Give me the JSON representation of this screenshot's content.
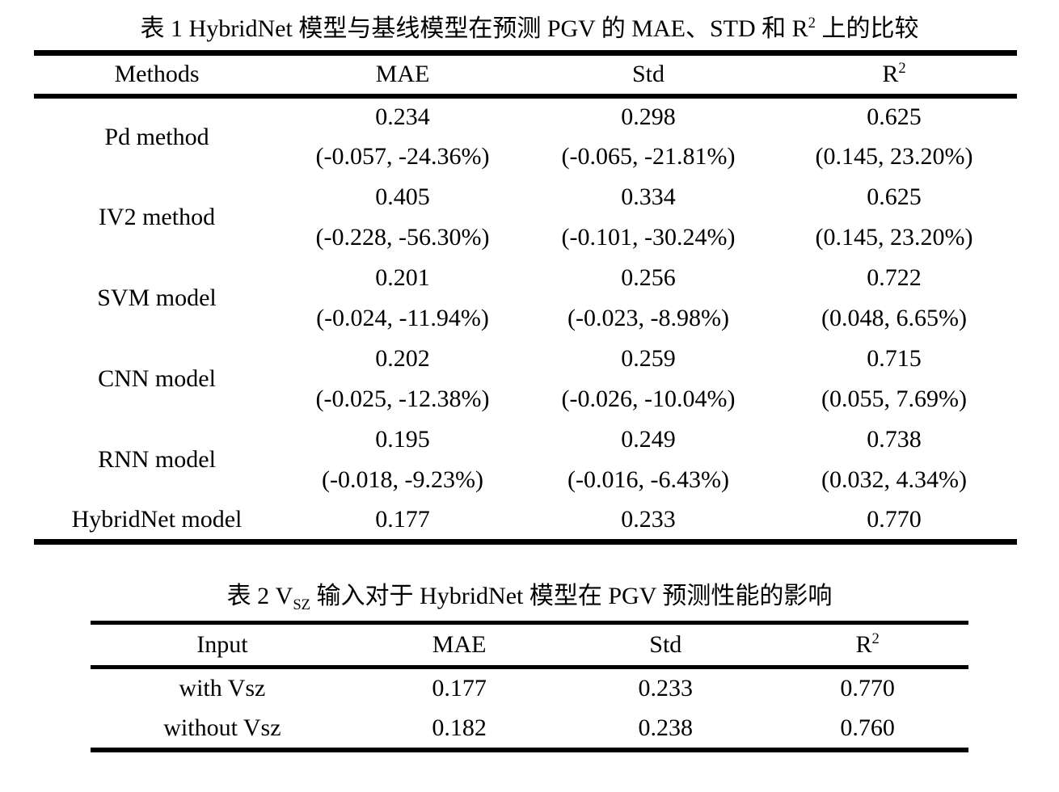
{
  "colors": {
    "text": "#000000",
    "background": "#ffffff",
    "rule": "#000000"
  },
  "table1": {
    "caption": {
      "prefix": "表 1 HybridNet 模型与基线模型在预测 PGV 的 MAE、STD 和 R",
      "sup": "2",
      "suffix": " 上的比较"
    },
    "headers": {
      "methods": "Methods",
      "mae": "MAE",
      "std": "Std",
      "r2_base": "R",
      "r2_sup": "2"
    },
    "rows": [
      {
        "method": "Pd method",
        "mae": "0.234",
        "mae_delta": "(-0.057, -24.36%)",
        "std": "0.298",
        "std_delta": "(-0.065, -21.81%)",
        "r2": "0.625",
        "r2_delta": "(0.145, 23.20%)"
      },
      {
        "method": "IV2 method",
        "mae": "0.405",
        "mae_delta": "(-0.228, -56.30%)",
        "std": "0.334",
        "std_delta": "(-0.101, -30.24%)",
        "r2": "0.625",
        "r2_delta": "(0.145, 23.20%)"
      },
      {
        "method": "SVM model",
        "mae": "0.201",
        "mae_delta": "(-0.024, -11.94%)",
        "std": "0.256",
        "std_delta": "(-0.023, -8.98%)",
        "r2": "0.722",
        "r2_delta": "(0.048, 6.65%)"
      },
      {
        "method": "CNN model",
        "mae": "0.202",
        "mae_delta": "(-0.025, -12.38%)",
        "std": "0.259",
        "std_delta": "(-0.026, -10.04%)",
        "r2": "0.715",
        "r2_delta": "(0.055, 7.69%)"
      },
      {
        "method": "RNN model",
        "mae": "0.195",
        "mae_delta": "(-0.018, -9.23%)",
        "std": "0.249",
        "std_delta": "(-0.016, -6.43%)",
        "r2": "0.738",
        "r2_delta": "(0.032, 4.34%)"
      },
      {
        "method": "HybridNet model",
        "mae": "0.177",
        "std": "0.233",
        "r2": "0.770"
      }
    ]
  },
  "table2": {
    "caption": {
      "prefix": "表 2 V",
      "sub": "SZ",
      "suffix": " 输入对于 HybridNet 模型在 PGV 预测性能的影响"
    },
    "headers": {
      "input": "Input",
      "mae": "MAE",
      "std": "Std",
      "r2_base": "R",
      "r2_sup": "2"
    },
    "rows": [
      {
        "input": "with Vsz",
        "mae": "0.177",
        "std": "0.233",
        "r2": "0.770"
      },
      {
        "input": "without Vsz",
        "mae": "0.182",
        "std": "0.238",
        "r2": "0.760"
      }
    ]
  }
}
